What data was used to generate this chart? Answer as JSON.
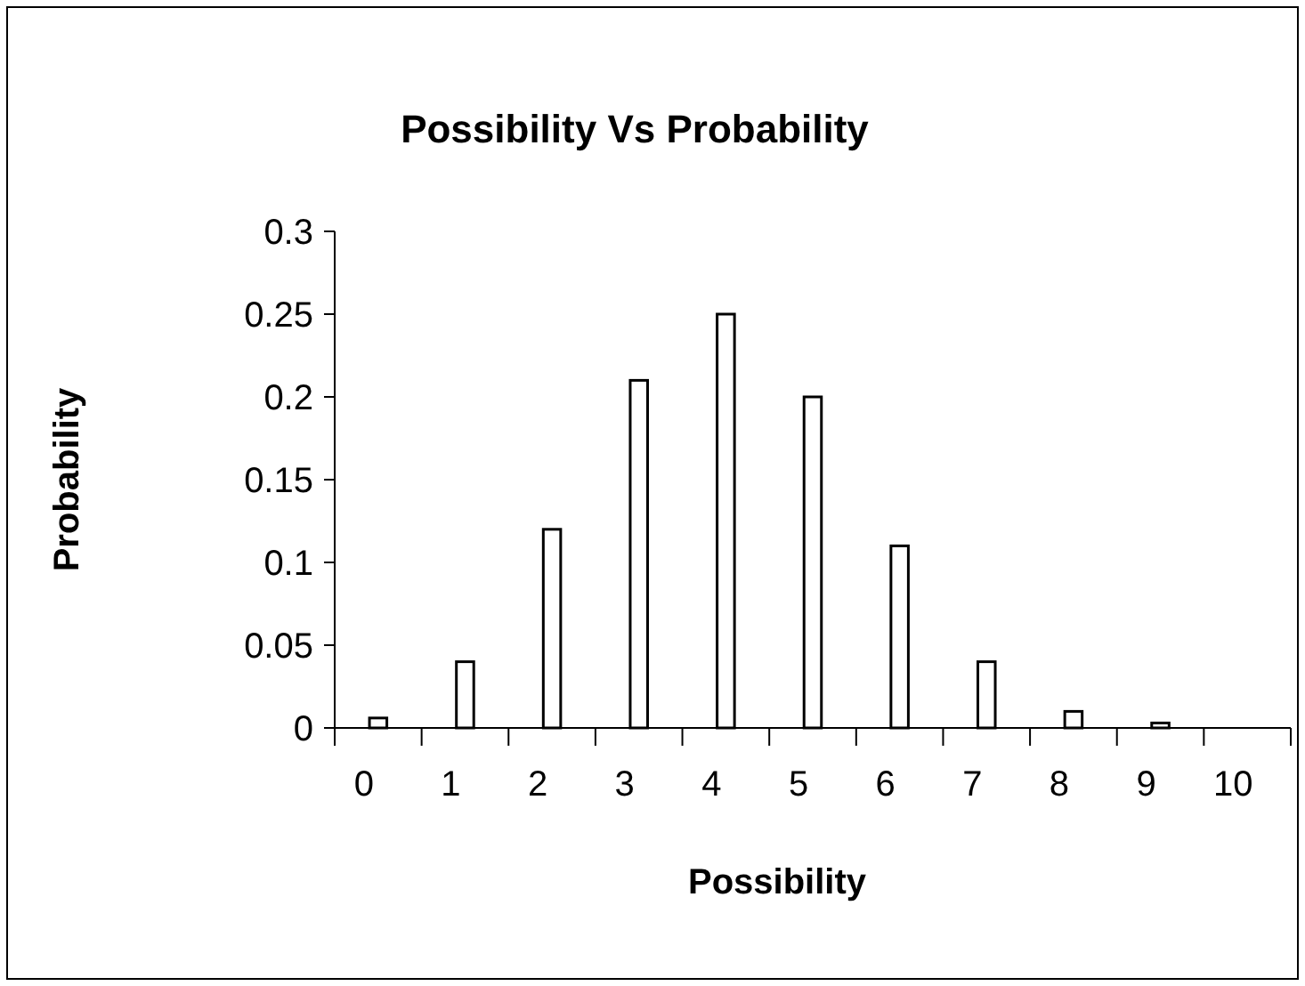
{
  "chart_data": {
    "type": "bar",
    "title": "Possibility Vs Probability",
    "xlabel": "Possibility",
    "ylabel": "Probability",
    "categories": [
      "0",
      "1",
      "2",
      "3",
      "4",
      "5",
      "6",
      "7",
      "8",
      "9",
      "10"
    ],
    "values": [
      0.006,
      0.04,
      0.12,
      0.21,
      0.25,
      0.2,
      0.11,
      0.04,
      0.01,
      0.003,
      0
    ],
    "color": "#ffffff",
    "ylim": [
      0,
      0.3
    ],
    "yticks": [
      0,
      0.05,
      0.1,
      0.15,
      0.2,
      0.25,
      0.3
    ],
    "grid": false
  }
}
